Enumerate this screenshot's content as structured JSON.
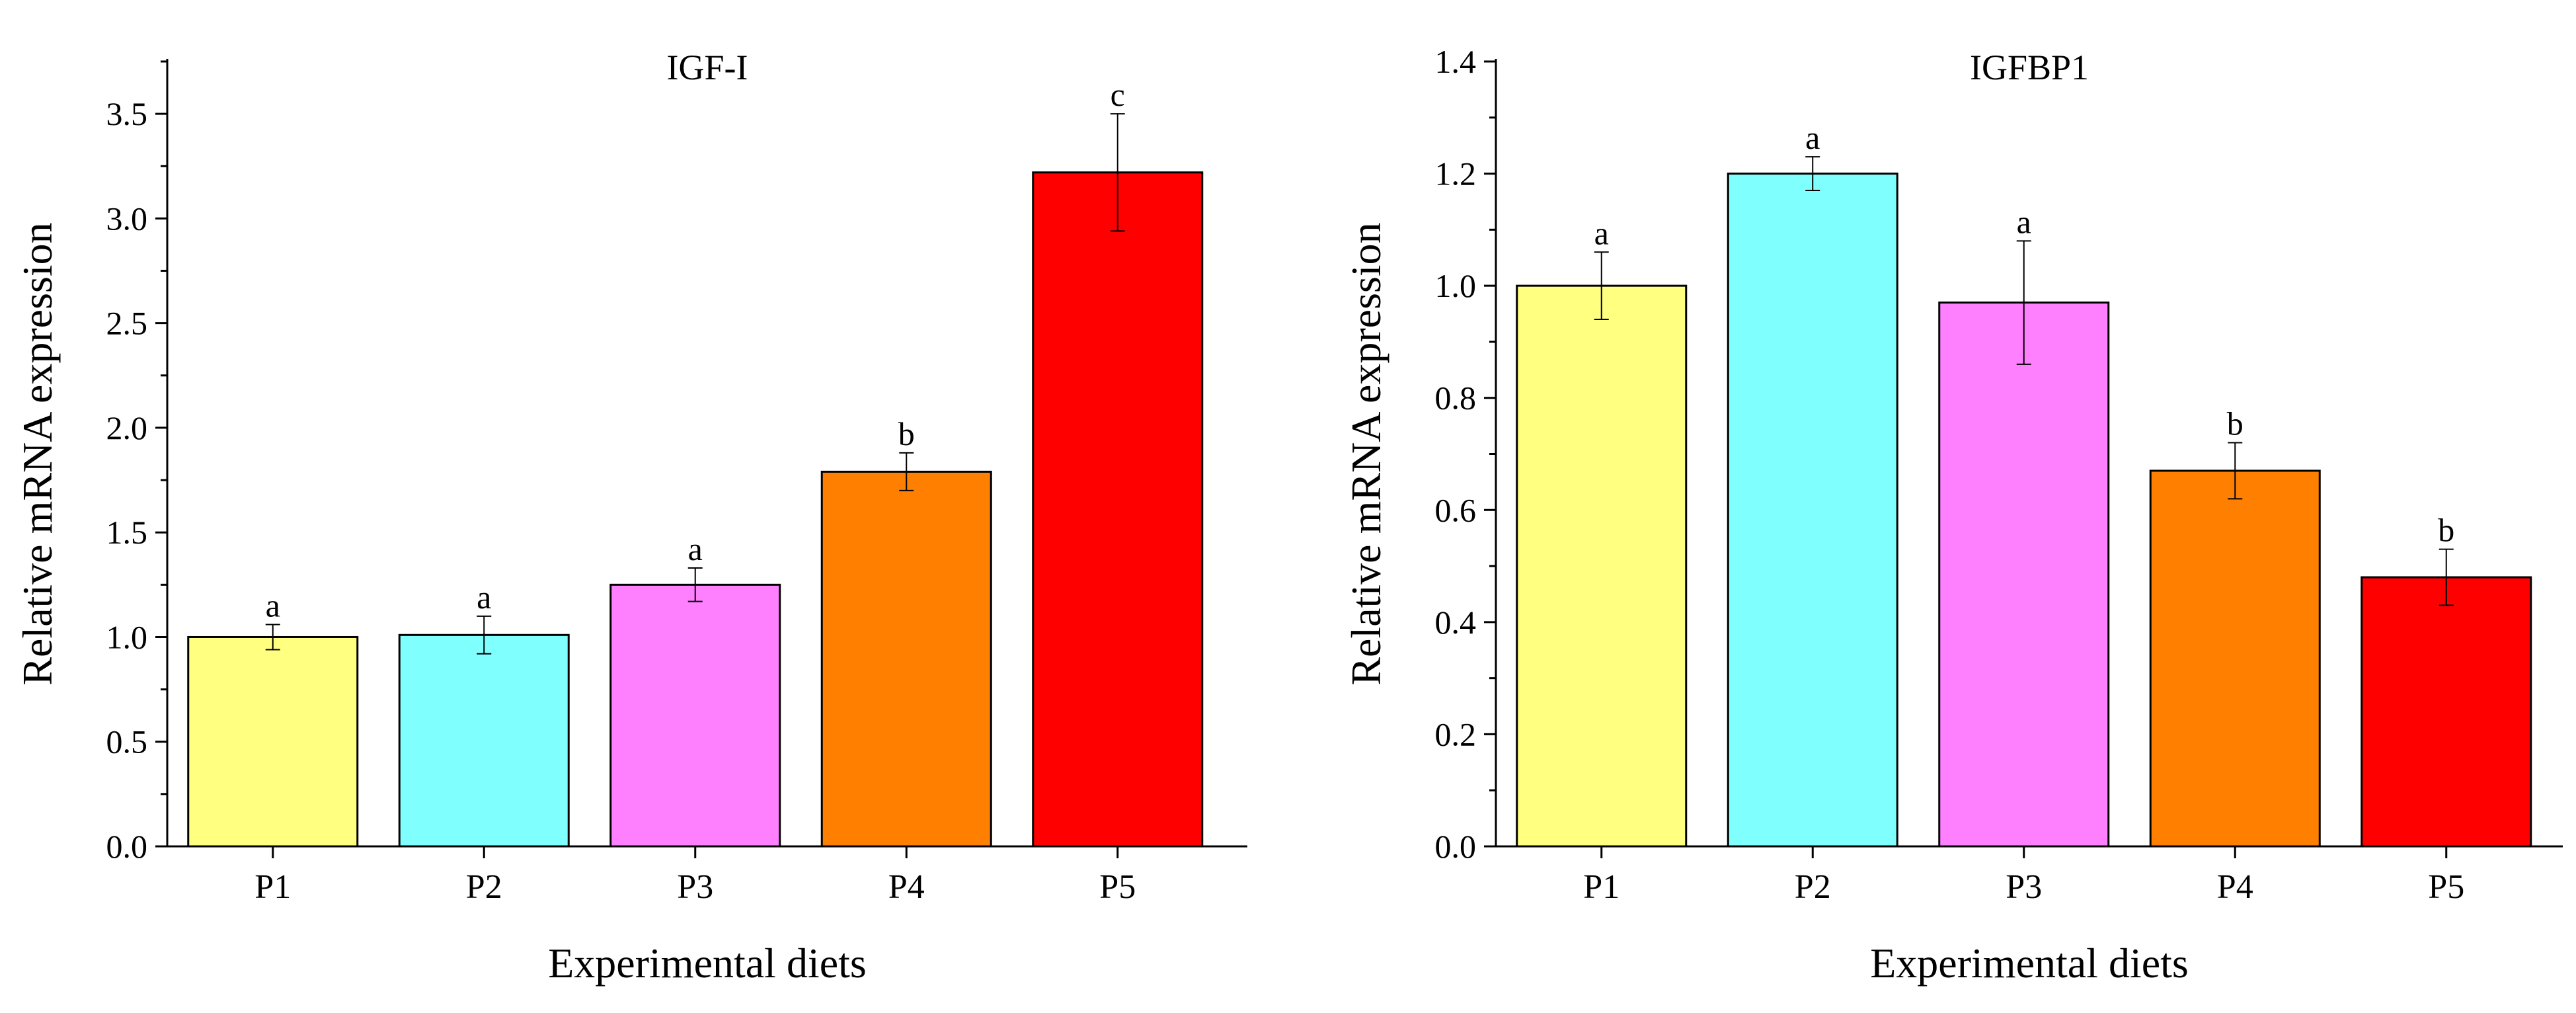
{
  "chart_data": [
    {
      "type": "bar",
      "title": "IGF-I",
      "xlabel": "Experimental diets",
      "ylabel": "Relative mRNA expression",
      "categories": [
        "P1",
        "P2",
        "P3",
        "P4",
        "P5"
      ],
      "values": [
        1.0,
        1.01,
        1.25,
        1.79,
        3.22
      ],
      "errors": [
        0.06,
        0.09,
        0.08,
        0.09,
        0.28
      ],
      "significance_letters": [
        "a",
        "a",
        "a",
        "b",
        "c"
      ],
      "colors": [
        "#FFFF80",
        "#80FFFF",
        "#FF80FF",
        "#FF8000",
        "#FF0000"
      ],
      "ylim": [
        0,
        3.75
      ],
      "yticks": [
        "0.0",
        "0.5",
        "1.0",
        "1.5",
        "2.0",
        "2.5",
        "3.0",
        "3.5"
      ],
      "ytick_values": [
        0,
        0.5,
        1.0,
        1.5,
        2.0,
        2.5,
        3.0,
        3.5
      ],
      "grid": false,
      "legend": "none"
    },
    {
      "type": "bar",
      "title": "IGFBP1",
      "xlabel": "Experimental diets",
      "ylabel": "Relative mRNA expression",
      "categories": [
        "P1",
        "P2",
        "P3",
        "P4",
        "P5"
      ],
      "values": [
        1.0,
        1.2,
        0.97,
        0.67,
        0.48
      ],
      "errors": [
        0.06,
        0.03,
        0.11,
        0.05,
        0.05
      ],
      "significance_letters": [
        "a",
        "a",
        "a",
        "b",
        "b"
      ],
      "colors": [
        "#FFFF80",
        "#80FFFF",
        "#FF80FF",
        "#FF8000",
        "#FF0000"
      ],
      "ylim": [
        0,
        1.4
      ],
      "yticks": [
        "0.0",
        "0.2",
        "0.4",
        "0.6",
        "0.8",
        "1.0",
        "1.2",
        "1.4"
      ],
      "ytick_values": [
        0,
        0.2,
        0.4,
        0.6,
        0.8,
        1.0,
        1.2,
        1.4
      ],
      "grid": false,
      "legend": "none"
    }
  ]
}
